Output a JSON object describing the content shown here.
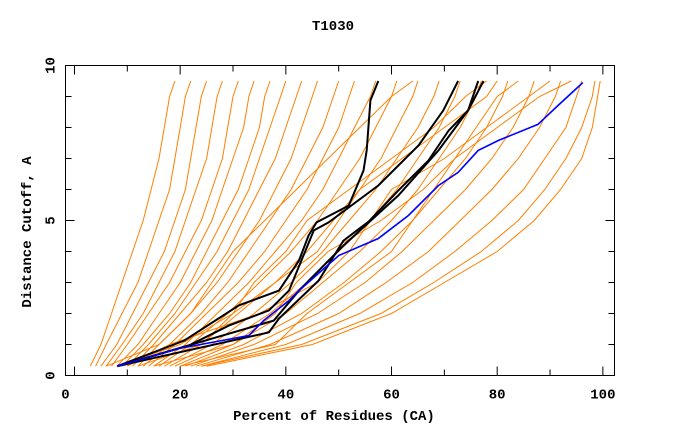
{
  "chart_data": {
    "type": "line",
    "title": "T1030",
    "xlabel": "Percent of Residues (CA)",
    "ylabel": "Distance Cutoff, A",
    "xlim": [
      -1.7,
      102.2
    ],
    "ylim": [
      0,
      10
    ],
    "xticks": [
      0,
      20,
      40,
      60,
      80,
      100
    ],
    "xminor_step": 10,
    "yticks": [
      0,
      5,
      10
    ],
    "yminor_step": 1,
    "grid": false,
    "colors": {
      "models": "#ff8000",
      "highlight": "#000000",
      "best": "#0000ff"
    },
    "orange_levels": [
      0.3,
      1,
      2,
      3,
      4,
      5,
      6,
      7,
      8,
      9,
      9.5
    ],
    "orange_series": [
      [
        3,
        5,
        7,
        9,
        11,
        13,
        14.5,
        16,
        17,
        18,
        19
      ],
      [
        4,
        6,
        9,
        12,
        14,
        16,
        18,
        19,
        20,
        21,
        22
      ],
      [
        5,
        8,
        11,
        14,
        17,
        19,
        21,
        22,
        23,
        24,
        25
      ],
      [
        6,
        9,
        13,
        16,
        19,
        21,
        23,
        25,
        26,
        27,
        28
      ],
      [
        7,
        10,
        14,
        18,
        21,
        24,
        26,
        28,
        29,
        30,
        31
      ],
      [
        8,
        12,
        16,
        20,
        23,
        26,
        28,
        30,
        32,
        33,
        34
      ],
      [
        9,
        13,
        18,
        22,
        25,
        28,
        31,
        33,
        35,
        36,
        37
      ],
      [
        10,
        14,
        19,
        23,
        27,
        30,
        33,
        35,
        37,
        39,
        40
      ],
      [
        11,
        15,
        20,
        25,
        29,
        32,
        35,
        38,
        40,
        42,
        43
      ],
      [
        12,
        16,
        22,
        27,
        31,
        35,
        38,
        41,
        43,
        45,
        46
      ],
      [
        13,
        18,
        24,
        29,
        33,
        37,
        41,
        44,
        47,
        49,
        50
      ],
      [
        14,
        19,
        25,
        31,
        36,
        40,
        44,
        47,
        50,
        52,
        53
      ],
      [
        15,
        21,
        27,
        33,
        38,
        43,
        47,
        50,
        53,
        56,
        57
      ],
      [
        16,
        22,
        29,
        35,
        41,
        46,
        50,
        54,
        57,
        60,
        61
      ],
      [
        17,
        24,
        31,
        38,
        44,
        49,
        54,
        58,
        61,
        64,
        65
      ],
      [
        18,
        26,
        34,
        41,
        47,
        52,
        57,
        61,
        65,
        68,
        69
      ],
      [
        19,
        28,
        37,
        44,
        50,
        56,
        61,
        65,
        69,
        72,
        73
      ],
      [
        20,
        30,
        40,
        47,
        54,
        60,
        65,
        69,
        73,
        76,
        77
      ],
      [
        21,
        32,
        43,
        51,
        58,
        64,
        69,
        74,
        78,
        81,
        82
      ],
      [
        22,
        34,
        46,
        55,
        62,
        68,
        74,
        79,
        83,
        86,
        87
      ],
      [
        23,
        37,
        50,
        59,
        67,
        73,
        79,
        84,
        88,
        91,
        92
      ],
      [
        24,
        40,
        54,
        64,
        72,
        79,
        85,
        89,
        93,
        95,
        96
      ],
      [
        24,
        43,
        58,
        68,
        77,
        84,
        89,
        93,
        96,
        98,
        98.5
      ],
      [
        25,
        45,
        60,
        70,
        80,
        87,
        92,
        96,
        98,
        99,
        99.5
      ],
      [
        8,
        20,
        30,
        38,
        46,
        50,
        54,
        62,
        70,
        78,
        80
      ],
      [
        15,
        30,
        38,
        42,
        48,
        58,
        66,
        72,
        76,
        80,
        84
      ],
      [
        10,
        18,
        35,
        46,
        52,
        56,
        60,
        70,
        78,
        86,
        90
      ],
      [
        20,
        38,
        44,
        52,
        60,
        64,
        68,
        72,
        80,
        88,
        94
      ],
      [
        12,
        24,
        30,
        34,
        40,
        44,
        52,
        60,
        68,
        74,
        78
      ],
      [
        6,
        16,
        22,
        26,
        30,
        36,
        42,
        48,
        54,
        60,
        64
      ]
    ],
    "black_series": [
      {
        "x": [
          8.1,
          20.8,
          31.1,
          38.7,
          42.5,
          44.3,
          45.8,
          51.9,
          54.7,
          55.3,
          56,
          57.5
        ],
        "y": [
          0.3,
          1.13,
          2.26,
          2.74,
          3.71,
          4.52,
          4.94,
          5.48,
          6.61,
          7.26,
          8.87,
          9.5
        ]
      },
      {
        "x": [
          8.1,
          21.7,
          29.2,
          36.8,
          40.6,
          45.3,
          48.1,
          57.5,
          65.1,
          69.8,
          72.6
        ],
        "y": [
          0.3,
          0.97,
          1.61,
          2.1,
          2.74,
          4.68,
          4.94,
          6.13,
          7.42,
          8.55,
          9.5
        ]
      },
      {
        "x": [
          8.1,
          36.8,
          38.7,
          46.2,
          50.9,
          55.7,
          61.3,
          67,
          70.8,
          74.5,
          76.4
        ],
        "y": [
          0.3,
          1.39,
          1.84,
          3.06,
          4.35,
          4.97,
          5.97,
          6.94,
          7.9,
          8.55,
          9.5
        ]
      },
      {
        "x": [
          8.1,
          37.7,
          42.5,
          50.9,
          61.3,
          68.9,
          74.5,
          77.4
        ],
        "y": [
          0.3,
          1.77,
          2.74,
          4.19,
          5.81,
          7.26,
          8.55,
          9.5
        ]
      }
    ],
    "blue_series": {
      "x": [
        8.1,
        19.8,
        33,
        35.8,
        40.6,
        42.5,
        50,
        57.5,
        63.2,
        68.9,
        72.6,
        76.4,
        80.2,
        87.7,
        91.5,
        96.2
      ],
      "y": [
        0.3,
        0.87,
        1.29,
        1.77,
        2.42,
        2.74,
        3.87,
        4.42,
        5.16,
        6.13,
        6.55,
        7.26,
        7.58,
        8.1,
        8.71,
        9.45
      ]
    }
  }
}
